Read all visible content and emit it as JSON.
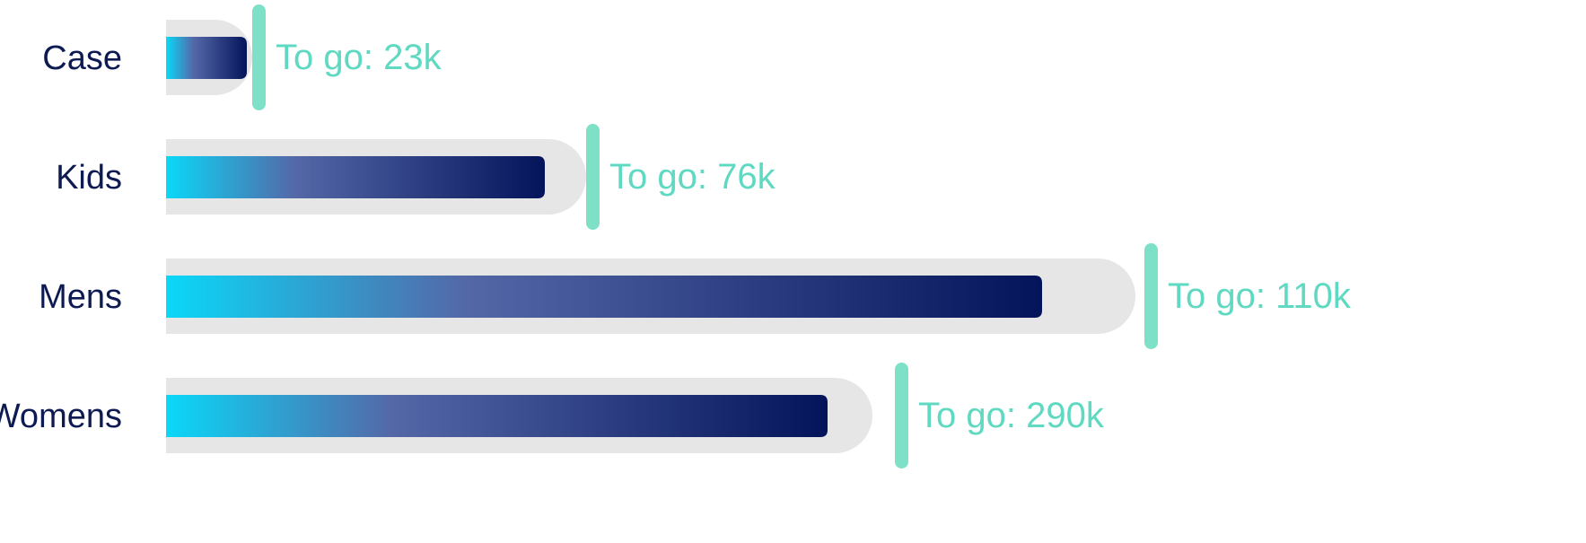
{
  "chart_data": {
    "type": "bar",
    "orientation": "horizontal",
    "subtype": "bullet",
    "categories": [
      "Case",
      "Kids",
      "Mens",
      "Womens"
    ],
    "series": [
      {
        "values": [
          96,
          468,
          1080,
          787
        ]
      },
      {
        "values": [
          90,
          422,
          976,
          737
        ]
      },
      {
        "values": [
          96,
          468,
          1090,
          812
        ]
      }
    ],
    "target_labels": [
      "To go: 23k",
      "To go: 76k",
      "To go: 110k",
      "To go: 290k"
    ],
    "xlim": [
      0,
      1240
    ],
    "grid": false,
    "legend": "none",
    "colors": {
      "track": "#e6e6e6",
      "bar_start": "#0ad8f8",
      "bar_mid": "#5468a8",
      "bar_end": "#04145a",
      "target": "#7fe0c8",
      "target_text": "#5fd9c1",
      "category_text": "#0d1b52"
    }
  }
}
